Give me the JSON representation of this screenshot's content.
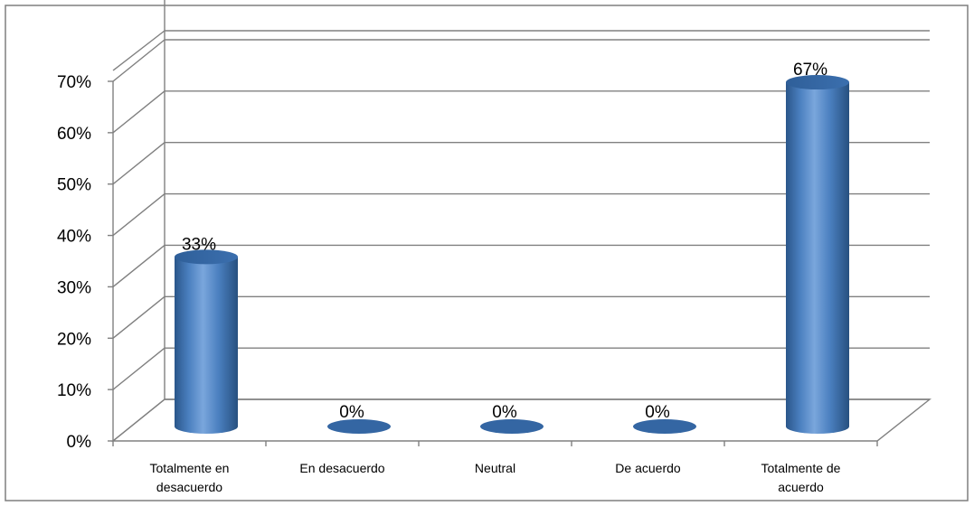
{
  "chart_data": {
    "type": "bar",
    "style": "3d-cylinder",
    "categories": [
      "Totalmente en desacuerdo",
      "En desacuerdo",
      "Neutral",
      "De acuerdo",
      "Totalmente de acuerdo"
    ],
    "category_lines": [
      [
        "Totalmente en",
        "desacuerdo"
      ],
      [
        "En desacuerdo"
      ],
      [
        "Neutral"
      ],
      [
        "De acuerdo"
      ],
      [
        "Totalmente de",
        "acuerdo"
      ]
    ],
    "values": [
      33,
      0,
      0,
      0,
      67
    ],
    "data_labels": [
      "33%",
      "0%",
      "0%",
      "0%",
      "67%"
    ],
    "ylim": [
      0,
      70
    ],
    "yticks": [
      0,
      10,
      20,
      30,
      40,
      50,
      60,
      70
    ],
    "ytick_labels": [
      "0%",
      "10%",
      "20%",
      "30%",
      "40%",
      "50%",
      "60%",
      "70%"
    ],
    "grid": true,
    "legend": "none",
    "title": "",
    "xlabel": "",
    "ylabel": "",
    "colors": {
      "bar_fill": "#4f81bd",
      "bar_dark": "#2d5a8e",
      "bar_top": "#3a6aa6",
      "grid": "#808080",
      "frame": "#808080"
    }
  }
}
